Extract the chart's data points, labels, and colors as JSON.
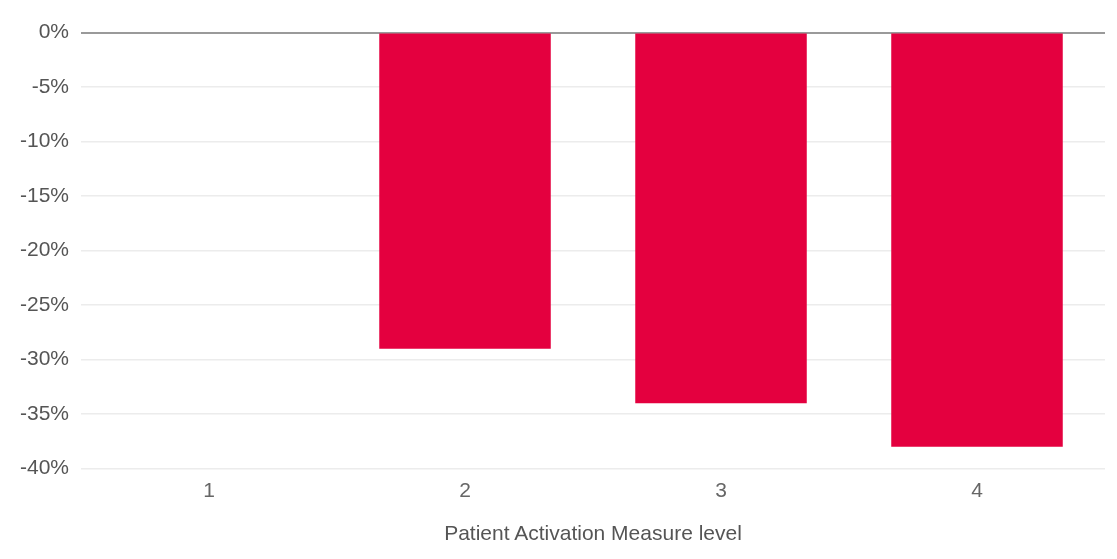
{
  "chart_data": {
    "type": "bar",
    "xlabel": "Patient Activation Measure level",
    "categories": [
      "1",
      "2",
      "3",
      "4"
    ],
    "values": [
      0,
      -29,
      -34,
      -38
    ],
    "color": "#e4003f",
    "ylim": [
      -40,
      0
    ],
    "yticks": [
      {
        "value": 0,
        "label": "0%"
      },
      {
        "value": -5,
        "label": "-5%"
      },
      {
        "value": -10,
        "label": "-10%"
      },
      {
        "value": -15,
        "label": "-15%"
      },
      {
        "value": -20,
        "label": "-20%"
      },
      {
        "value": -25,
        "label": "-25%"
      },
      {
        "value": -30,
        "label": "-30%"
      },
      {
        "value": -35,
        "label": "-35%"
      },
      {
        "value": -40,
        "label": "-40%"
      }
    ],
    "grid": "y",
    "legend": false
  }
}
